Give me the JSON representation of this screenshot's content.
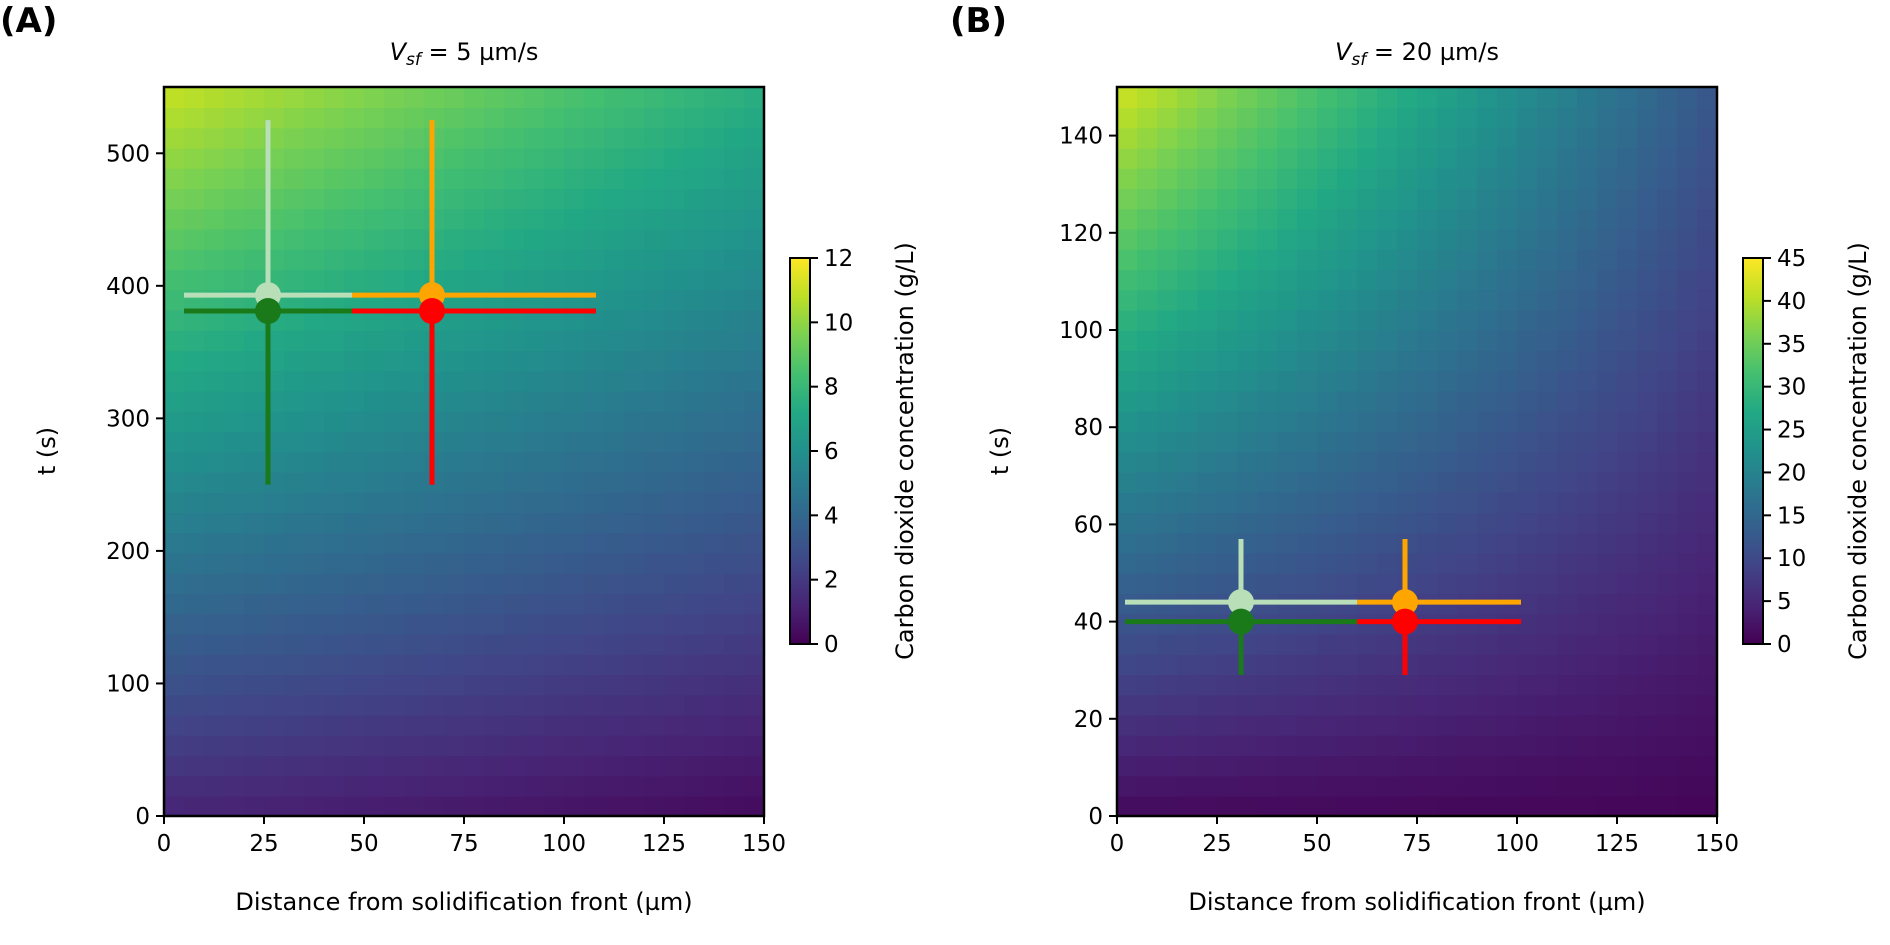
{
  "chart_data": [
    {
      "type": "heatmap",
      "panel_label": "(A)",
      "title_symbol": "V",
      "title_subscript": "sf",
      "title_value": " = 5 µm/s",
      "xlabel": "Distance from solidification front (µm)",
      "ylabel": "t (s)",
      "xlim": [
        0,
        150
      ],
      "ylim": [
        0,
        550
      ],
      "x_ticks": [
        0,
        25,
        50,
        75,
        100,
        125,
        150
      ],
      "y_ticks": [
        0,
        100,
        200,
        300,
        400,
        500
      ],
      "colorbar": {
        "label": "Carbon dioxide concentration (g/L)",
        "range": [
          0,
          12
        ],
        "ticks": [
          0,
          2,
          4,
          6,
          8,
          10,
          12
        ]
      },
      "field_samples": {
        "description_of_corners": "value at (x,t)",
        "bottom_left": 1.2,
        "bottom_right": 0.3,
        "top_left": 11.0,
        "top_right": 7.5
      },
      "markers": [
        {
          "name": "light-green",
          "color": "#b8dfb8",
          "x": 26,
          "y": 393,
          "xerr": [
            5,
            47
          ],
          "yerr": [
            262,
            525
          ]
        },
        {
          "name": "green",
          "color": "#1a7a1a",
          "x": 26,
          "y": 381,
          "xerr": [
            5,
            47
          ],
          "yerr": [
            250,
            381
          ]
        },
        {
          "name": "orange",
          "color": "#ffa500",
          "x": 67,
          "y": 393,
          "xerr": [
            47,
            108
          ],
          "yerr": [
            262,
            525
          ]
        },
        {
          "name": "red",
          "color": "#ff0000",
          "x": 67,
          "y": 381,
          "xerr": [
            47,
            108
          ],
          "yerr": [
            250,
            381
          ]
        }
      ]
    },
    {
      "type": "heatmap",
      "panel_label": "(B)",
      "title_symbol": "V",
      "title_subscript": "sf",
      "title_value": " = 20 µm/s",
      "xlabel": "Distance from solidification front (µm)",
      "ylabel": "t (s)",
      "xlim": [
        0,
        150
      ],
      "ylim": [
        0,
        150
      ],
      "x_ticks": [
        0,
        25,
        50,
        75,
        100,
        125,
        150
      ],
      "y_ticks": [
        0,
        20,
        40,
        60,
        80,
        100,
        120,
        140
      ],
      "colorbar": {
        "label": "Carbon dioxide concentration (g/L)",
        "range": [
          0,
          45
        ],
        "ticks": [
          0,
          5,
          10,
          15,
          20,
          25,
          30,
          35,
          40,
          45
        ]
      },
      "field_samples": {
        "description_of_corners": "value at (x,t)",
        "bottom_left": 1.0,
        "bottom_right": 0.5,
        "top_left": 42.0,
        "top_right": 12.0
      },
      "markers": [
        {
          "name": "light-green",
          "color": "#b8dfb8",
          "x": 31,
          "y": 44,
          "xerr": [
            2,
            60
          ],
          "yerr": [
            31,
            57
          ]
        },
        {
          "name": "green",
          "color": "#1a7a1a",
          "x": 31,
          "y": 40,
          "xerr": [
            2,
            60
          ],
          "yerr": [
            29,
            40
          ]
        },
        {
          "name": "orange",
          "color": "#ffa500",
          "x": 72,
          "y": 44,
          "xerr": [
            60,
            101
          ],
          "yerr": [
            31,
            57
          ]
        },
        {
          "name": "red",
          "color": "#ff0000",
          "x": 72,
          "y": 40,
          "xerr": [
            60,
            101
          ],
          "yerr": [
            29,
            40
          ]
        }
      ]
    }
  ]
}
